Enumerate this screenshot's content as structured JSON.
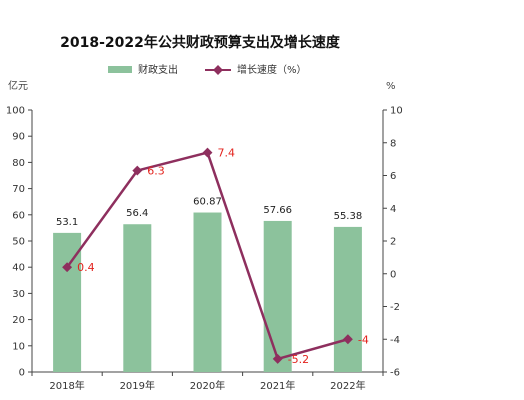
{
  "chart_data": {
    "type": "bar+line",
    "title": "2018-2022年公共财政预算支出及增长速度",
    "categories": [
      "2018年",
      "2019年",
      "2020年",
      "2021年",
      "2022年"
    ],
    "y_left": {
      "unit": "亿元",
      "ylim": [
        0,
        100
      ],
      "ticks": [
        0,
        10,
        20,
        30,
        40,
        50,
        60,
        70,
        80,
        90,
        100
      ]
    },
    "y_right": {
      "unit": "%",
      "ylim": [
        -6,
        10
      ],
      "ticks": [
        "-6",
        "-4",
        "-2",
        "0",
        "2",
        "4",
        "6",
        "8",
        "10"
      ]
    },
    "series": [
      {
        "name": "财政支出",
        "type": "bar",
        "axis": "left",
        "color": "#8cc29c",
        "values": [
          53.1,
          56.4,
          60.87,
          57.66,
          55.38
        ],
        "labels": [
          "53.1",
          "56.4",
          "60.87",
          "57.66",
          "55.38"
        ]
      },
      {
        "name": "增长速度（%）",
        "type": "line",
        "axis": "right",
        "color": "#8e2f5e",
        "label_color": "#e3231d",
        "values": [
          0.4,
          6.3,
          7.4,
          -5.2,
          -4
        ],
        "labels": [
          "0.4",
          "6.3",
          "7.4",
          "-5.2",
          "-4"
        ]
      }
    ],
    "legend_position": "top",
    "grid": false
  }
}
